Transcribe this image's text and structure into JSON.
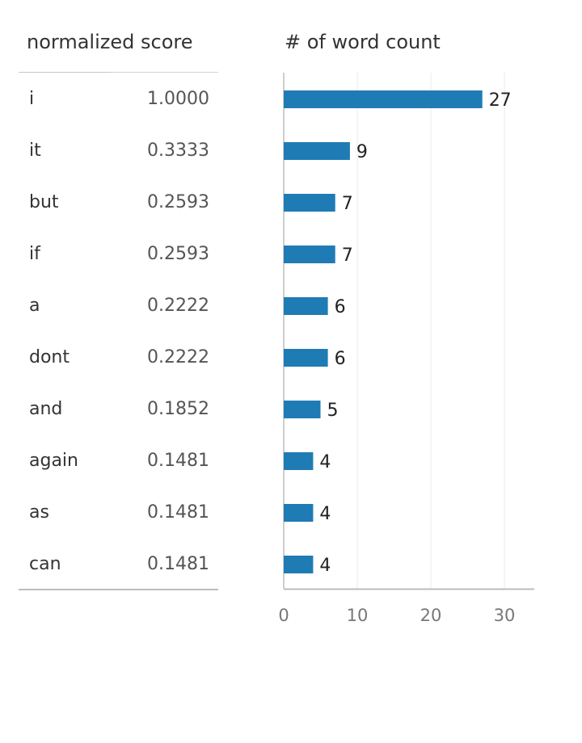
{
  "table": {
    "header": "normalized score"
  },
  "chart_data": {
    "type": "bar",
    "orientation": "horizontal",
    "title": "# of word count",
    "categories": [
      "i",
      "it",
      "but",
      "if",
      "a",
      "dont",
      "and",
      "again",
      "as",
      "can"
    ],
    "values": [
      27,
      9,
      7,
      7,
      6,
      6,
      5,
      4,
      4,
      4
    ],
    "normalized_scores": [
      "1.0000",
      "0.3333",
      "0.2593",
      "0.2593",
      "0.2222",
      "0.2222",
      "0.1852",
      "0.1481",
      "0.1481",
      "0.1481"
    ],
    "xticks": [
      0,
      10,
      20,
      30
    ],
    "xlim": [
      0,
      34
    ],
    "grid": true,
    "bar_color": "#1f7bb4"
  }
}
